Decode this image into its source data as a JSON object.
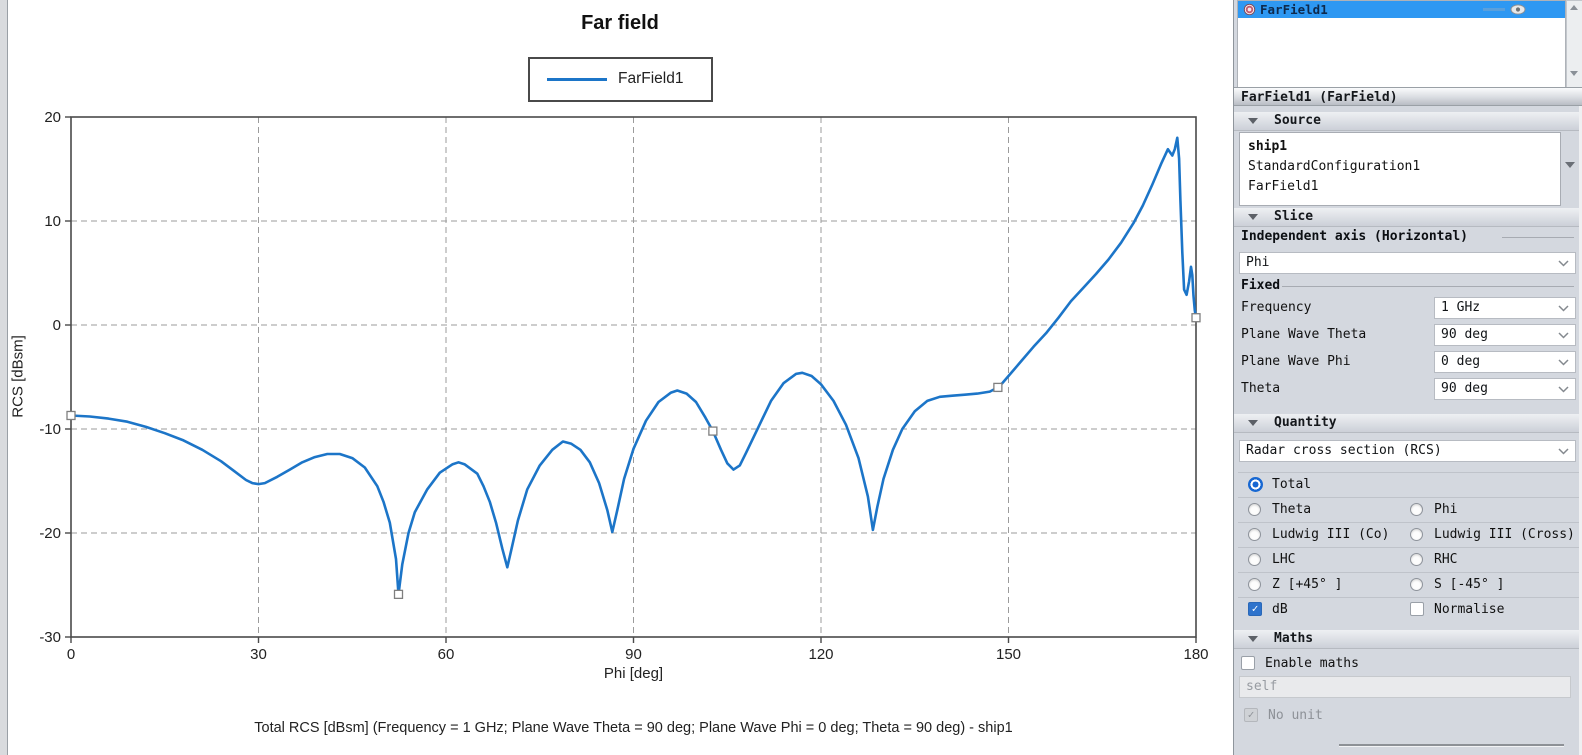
{
  "chart_data": {
    "type": "line",
    "title": "Far field",
    "xlabel": "Phi [deg]",
    "ylabel": "RCS [dBsm]",
    "xlim": [
      0,
      180
    ],
    "ylim": [
      -30,
      20
    ],
    "x_ticks": [
      0,
      30,
      60,
      90,
      120,
      150,
      180
    ],
    "y_ticks": [
      20,
      10,
      0,
      -10,
      -20,
      -30
    ],
    "grid": "dashed",
    "legend": {
      "position": "top",
      "entries": [
        {
          "label": "FarField1",
          "color": "#1c75c8"
        }
      ]
    },
    "caption": "Total RCS [dBsm] (Frequency = 1 GHz; Plane Wave Theta = 90 deg; Plane Wave Phi = 0 deg; Theta = 90 deg) - ship1",
    "series": [
      {
        "name": "FarField1",
        "color": "#1c75c8",
        "points": [
          [
            0,
            -8.7
          ],
          [
            3,
            -8.8
          ],
          [
            6,
            -9.0
          ],
          [
            9,
            -9.3
          ],
          [
            12,
            -9.8
          ],
          [
            15,
            -10.4
          ],
          [
            18,
            -11.1
          ],
          [
            21,
            -12.0
          ],
          [
            24,
            -13.1
          ],
          [
            26,
            -14.0
          ],
          [
            28,
            -14.9
          ],
          [
            29,
            -15.2
          ],
          [
            30,
            -15.3
          ],
          [
            31,
            -15.2
          ],
          [
            33,
            -14.6
          ],
          [
            35,
            -13.9
          ],
          [
            37,
            -13.2
          ],
          [
            39,
            -12.7
          ],
          [
            41,
            -12.4
          ],
          [
            43,
            -12.4
          ],
          [
            45,
            -12.8
          ],
          [
            47,
            -13.7
          ],
          [
            49,
            -15.5
          ],
          [
            50,
            -17.0
          ],
          [
            51,
            -19.0
          ],
          [
            52,
            -22.5
          ],
          [
            52.4,
            -25.9
          ],
          [
            53,
            -23.0
          ],
          [
            54,
            -20.0
          ],
          [
            55,
            -18.0
          ],
          [
            57,
            -15.8
          ],
          [
            59,
            -14.2
          ],
          [
            61,
            -13.4
          ],
          [
            62,
            -13.2
          ],
          [
            63,
            -13.4
          ],
          [
            65,
            -14.3
          ],
          [
            66,
            -15.5
          ],
          [
            67,
            -17.0
          ],
          [
            68,
            -19.0
          ],
          [
            69,
            -21.5
          ],
          [
            69.8,
            -23.3
          ],
          [
            70.5,
            -21.5
          ],
          [
            71.5,
            -18.8
          ],
          [
            73,
            -15.8
          ],
          [
            75,
            -13.5
          ],
          [
            77,
            -12.0
          ],
          [
            78.7,
            -11.2
          ],
          [
            80,
            -11.4
          ],
          [
            81.5,
            -12.0
          ],
          [
            83,
            -13.2
          ],
          [
            84.5,
            -15.2
          ],
          [
            85.8,
            -17.8
          ],
          [
            86.6,
            -19.9
          ],
          [
            87.4,
            -17.8
          ],
          [
            88.5,
            -14.8
          ],
          [
            90,
            -11.9
          ],
          [
            92,
            -9.2
          ],
          [
            94,
            -7.4
          ],
          [
            96,
            -6.5
          ],
          [
            97,
            -6.3
          ],
          [
            98.5,
            -6.6
          ],
          [
            100,
            -7.4
          ],
          [
            101.5,
            -8.9
          ],
          [
            102.7,
            -10.2
          ],
          [
            104,
            -12.0
          ],
          [
            105,
            -13.3
          ],
          [
            106,
            -13.9
          ],
          [
            107,
            -13.5
          ],
          [
            108,
            -12.3
          ],
          [
            110,
            -9.8
          ],
          [
            112,
            -7.3
          ],
          [
            114,
            -5.6
          ],
          [
            116,
            -4.7
          ],
          [
            117,
            -4.6
          ],
          [
            118.5,
            -4.9
          ],
          [
            120,
            -5.7
          ],
          [
            122,
            -7.3
          ],
          [
            124,
            -9.6
          ],
          [
            126,
            -12.8
          ],
          [
            127.5,
            -16.5
          ],
          [
            128.3,
            -19.7
          ],
          [
            129,
            -17.5
          ],
          [
            130,
            -14.8
          ],
          [
            131.5,
            -12.0
          ],
          [
            133,
            -10.0
          ],
          [
            135,
            -8.3
          ],
          [
            137,
            -7.3
          ],
          [
            139,
            -6.9
          ],
          [
            141,
            -6.8
          ],
          [
            143,
            -6.7
          ],
          [
            145,
            -6.6
          ],
          [
            147,
            -6.4
          ],
          [
            148.3,
            -6.0
          ],
          [
            149,
            -5.6
          ],
          [
            150,
            -4.9
          ],
          [
            152,
            -3.5
          ],
          [
            154,
            -2.1
          ],
          [
            156,
            -0.8
          ],
          [
            158,
            0.7
          ],
          [
            160,
            2.3
          ],
          [
            162,
            3.6
          ],
          [
            164,
            4.9
          ],
          [
            166,
            6.3
          ],
          [
            168,
            7.9
          ],
          [
            170,
            9.8
          ],
          [
            171.5,
            11.5
          ],
          [
            173,
            13.5
          ],
          [
            174.5,
            15.6
          ],
          [
            175.5,
            16.9
          ],
          [
            176.2,
            16.3
          ],
          [
            176.6,
            16.9
          ],
          [
            177.0,
            18.0
          ],
          [
            177.3,
            16.0
          ],
          [
            177.5,
            12.0
          ],
          [
            177.8,
            7.0
          ],
          [
            178.1,
            3.4
          ],
          [
            178.5,
            2.9
          ],
          [
            178.9,
            4.2
          ],
          [
            179.2,
            5.6
          ],
          [
            179.4,
            4.8
          ],
          [
            179.6,
            2.8
          ],
          [
            179.8,
            1.4
          ],
          [
            180,
            0.7
          ]
        ],
        "marker_points": [
          [
            0,
            -8.7
          ],
          [
            52.4,
            -25.9
          ],
          [
            102.7,
            -10.2
          ],
          [
            148.3,
            -6.0
          ],
          [
            180,
            0.7
          ]
        ]
      }
    ]
  },
  "right_panel": {
    "results_list": {
      "selected_item": "FarField1",
      "item_icon": "far-field-donut-icon",
      "visibility_icon": "eye-icon"
    },
    "header": "FarField1 (FarField)",
    "sections": {
      "source": "Source",
      "slice": "Slice",
      "quantity": "Quantity",
      "maths": "Maths"
    },
    "source": {
      "model": "ship1",
      "configuration": "StandardConfiguration1",
      "request": "FarField1"
    },
    "slice": {
      "independent_axis_label": "Independent axis (Horizontal)",
      "independent_axis_value": "Phi",
      "fixed_label": "Fixed",
      "fixed_rows": [
        {
          "label": "Frequency",
          "value": "1 GHz"
        },
        {
          "label": "Plane Wave Theta",
          "value": "90 deg"
        },
        {
          "label": "Plane Wave Phi",
          "value": "0 deg"
        },
        {
          "label": "Theta",
          "value": "90 deg"
        }
      ]
    },
    "quantity": {
      "dropdown_value": "Radar cross section (RCS)",
      "radio_rows": [
        [
          {
            "label": "Total",
            "selected": true
          }
        ],
        [
          {
            "label": "Theta",
            "selected": false
          },
          {
            "label": "Phi",
            "selected": false
          }
        ],
        [
          {
            "label": "Ludwig III (Co)",
            "selected": false
          },
          {
            "label": "Ludwig III (Cross)",
            "selected": false
          }
        ],
        [
          {
            "label": "LHC",
            "selected": false
          },
          {
            "label": "RHC",
            "selected": false
          }
        ],
        [
          {
            "label": "Z [+45° ]",
            "selected": false
          },
          {
            "label": "S [-45° ]",
            "selected": false
          }
        ]
      ],
      "checkboxes": [
        {
          "label": "dB",
          "checked": true,
          "disabled": false
        },
        {
          "label": "Normalise",
          "checked": false,
          "disabled": false
        }
      ]
    },
    "maths": {
      "enable_label": "Enable maths",
      "enable_checked": false,
      "expression_value": "self",
      "no_unit_label": "No unit",
      "no_unit_checked": true,
      "no_unit_disabled": true
    },
    "colors": {
      "selection_blue": "#2e98f2",
      "accent_blue": "#2e73cc",
      "curve_blue": "#1c75c8",
      "panel_bg": "#d4d8df"
    }
  }
}
